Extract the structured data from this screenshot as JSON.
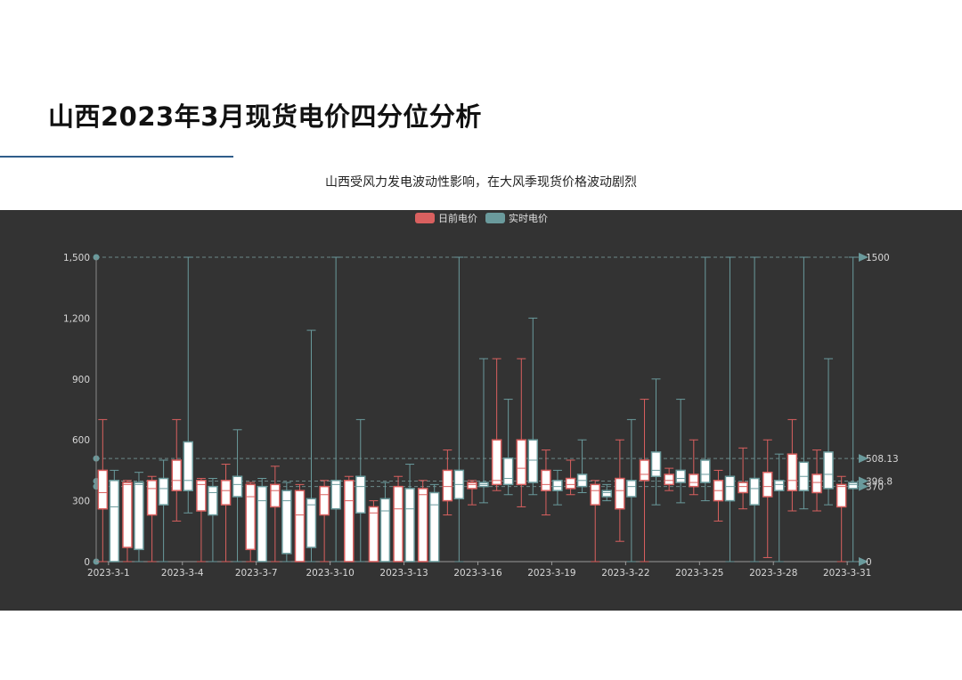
{
  "page": {
    "title": "山西2023年3月现货电价四分位分析",
    "subtitle": "山西受风力发电波动性影响，在大风季现货价格波动剧烈"
  },
  "colors": {
    "day_ahead": "#d9605f",
    "real_time": "#6a9a9c",
    "panel_background": "#333333",
    "box_fill": "#ffffff"
  },
  "chart_data": {
    "type": "boxplot",
    "legend": [
      "日前电价",
      "实时电价"
    ],
    "legend_position": "top-center",
    "ylim": [
      0,
      1500
    ],
    "yticks": [
      0,
      300,
      600,
      900,
      1200,
      1500
    ],
    "ytick_labels": [
      "0",
      "300",
      "600",
      "900",
      "1,200",
      "1,500"
    ],
    "x_labels_shown": [
      "2023-3-1",
      "2023-3-4",
      "2023-3-7",
      "2023-3-10",
      "2023-3-13",
      "2023-3-16",
      "2023-3-19",
      "2023-3-22",
      "2023-3-25",
      "2023-3-28",
      "2023-3-31"
    ],
    "markline_values": [
      1500,
      508.13,
      396.8,
      370,
      0
    ],
    "markline_labels": [
      "1500",
      "508.13",
      "396.8",
      "370",
      "0"
    ],
    "grid": false,
    "series": [
      {
        "name": "日前电价",
        "days": [
          [
            0,
            260,
            340,
            450,
            700
          ],
          [
            0,
            70,
            380,
            390,
            400
          ],
          [
            0,
            230,
            360,
            400,
            420
          ],
          [
            200,
            350,
            400,
            500,
            700
          ],
          [
            0,
            250,
            380,
            400,
            410
          ],
          [
            0,
            280,
            350,
            400,
            480
          ],
          [
            0,
            60,
            320,
            380,
            390
          ],
          [
            0,
            270,
            350,
            380,
            470
          ],
          [
            0,
            0,
            230,
            350,
            380
          ],
          [
            0,
            230,
            330,
            370,
            400
          ],
          [
            0,
            0,
            300,
            400,
            420
          ],
          [
            0,
            0,
            240,
            270,
            300
          ],
          [
            0,
            0,
            260,
            370,
            420
          ],
          [
            0,
            0,
            330,
            360,
            400
          ],
          [
            230,
            300,
            370,
            450,
            550
          ],
          [
            280,
            360,
            380,
            390,
            400
          ],
          [
            350,
            380,
            400,
            600,
            1000
          ],
          [
            270,
            380,
            460,
            600,
            1000
          ],
          [
            230,
            350,
            380,
            450,
            550
          ],
          [
            330,
            360,
            380,
            410,
            500
          ],
          [
            0,
            280,
            350,
            380,
            400
          ],
          [
            100,
            260,
            350,
            410,
            600
          ],
          [
            0,
            400,
            430,
            500,
            800
          ],
          [
            350,
            380,
            400,
            430,
            460
          ],
          [
            330,
            370,
            390,
            430,
            600
          ],
          [
            200,
            300,
            350,
            400,
            450
          ],
          [
            260,
            340,
            370,
            390,
            560
          ],
          [
            20,
            320,
            370,
            440,
            600
          ],
          [
            250,
            350,
            400,
            530,
            700
          ],
          [
            250,
            340,
            390,
            430,
            550
          ],
          [
            0,
            270,
            370,
            380,
            420
          ]
        ]
      },
      {
        "name": "实时电价",
        "days": [
          [
            0,
            0,
            270,
            400,
            450
          ],
          [
            0,
            60,
            380,
            390,
            440
          ],
          [
            0,
            280,
            360,
            410,
            500
          ],
          [
            240,
            350,
            400,
            590,
            1500
          ],
          [
            0,
            230,
            340,
            370,
            410
          ],
          [
            0,
            320,
            380,
            420,
            650
          ],
          [
            0,
            0,
            300,
            370,
            410
          ],
          [
            0,
            40,
            300,
            350,
            390
          ],
          [
            0,
            70,
            280,
            310,
            1140
          ],
          [
            0,
            260,
            380,
            400,
            1500
          ],
          [
            0,
            240,
            370,
            420,
            700
          ],
          [
            0,
            0,
            250,
            310,
            390
          ],
          [
            0,
            0,
            260,
            360,
            480
          ],
          [
            0,
            0,
            280,
            340,
            380
          ],
          [
            0,
            310,
            380,
            450,
            1500
          ],
          [
            290,
            370,
            380,
            390,
            1000
          ],
          [
            330,
            380,
            410,
            510,
            800
          ],
          [
            330,
            390,
            500,
            600,
            1200
          ],
          [
            280,
            350,
            370,
            400,
            450
          ],
          [
            340,
            370,
            400,
            430,
            600
          ],
          [
            300,
            320,
            340,
            350,
            380
          ],
          [
            0,
            320,
            370,
            400,
            700
          ],
          [
            280,
            420,
            450,
            540,
            900
          ],
          [
            290,
            390,
            410,
            450,
            800
          ],
          [
            300,
            390,
            430,
            500,
            1500
          ],
          [
            0,
            300,
            370,
            420,
            1500
          ],
          [
            0,
            280,
            360,
            410,
            1500
          ],
          [
            0,
            350,
            380,
            400,
            530
          ],
          [
            260,
            350,
            420,
            490,
            1500
          ],
          [
            280,
            360,
            430,
            540,
            1000
          ],
          [
            0,
            360,
            380,
            390,
            1500
          ]
        ]
      }
    ]
  }
}
